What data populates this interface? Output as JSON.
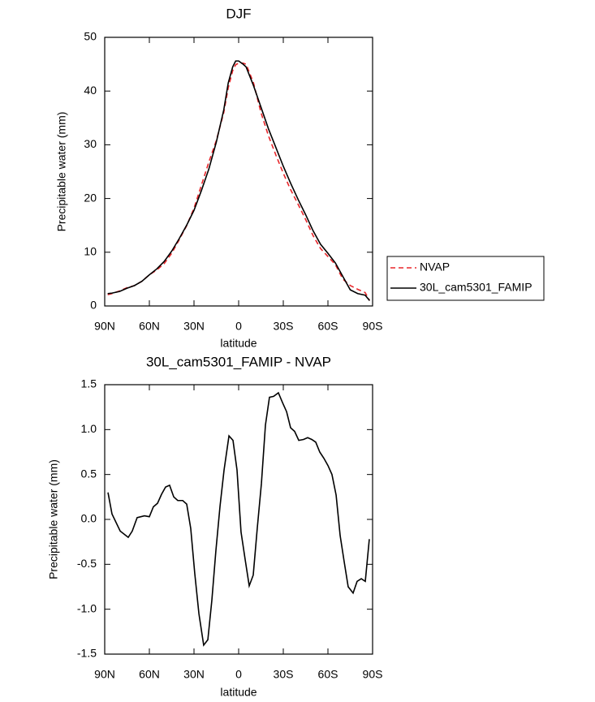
{
  "chart_data": [
    {
      "type": "line",
      "title": "DJF",
      "xlabel": "latitude",
      "ylabel": "Precipitable water (mm)",
      "x": [
        88,
        85,
        80,
        75,
        70,
        65,
        60,
        55,
        50,
        45,
        40,
        35,
        30,
        25,
        20,
        15,
        10,
        7,
        4,
        2,
        0,
        -3,
        -5,
        -10,
        -15,
        -20,
        -25,
        -30,
        -35,
        -40,
        -45,
        -50,
        -55,
        -60,
        -65,
        -70,
        -75,
        -80,
        -85,
        -88
      ],
      "series": [
        {
          "name": "NVAP",
          "color": "#e8262a",
          "style": "dashed",
          "values": [
            2.1,
            2.3,
            2.8,
            3.4,
            3.8,
            4.6,
            5.8,
            6.7,
            7.9,
            9.8,
            12.3,
            14.9,
            18.2,
            22.5,
            26.8,
            30.8,
            36,
            40.6,
            43.8,
            44.9,
            45.2,
            45.2,
            45,
            41.5,
            36,
            31.7,
            28.1,
            24.7,
            21.6,
            18.9,
            16.1,
            13.1,
            10.7,
            9.2,
            7.7,
            5.0,
            3.8,
            3.1,
            2.5,
            1.0
          ]
        },
        {
          "name": "30L_cam5301_FAMIP",
          "color": "#000000",
          "style": "solid",
          "values": [
            2.3,
            2.4,
            2.7,
            3.3,
            3.8,
            4.6,
            5.8,
            6.9,
            8.3,
            10.2,
            12.5,
            15.0,
            17.8,
            21.5,
            25.5,
            30.5,
            36.5,
            41.5,
            44.5,
            45.6,
            45.6,
            45,
            44.5,
            41,
            37,
            33,
            29.5,
            26,
            22.8,
            19.8,
            17,
            14,
            11.5,
            9.8,
            8,
            5.5,
            3,
            2.3,
            2,
            1
          ]
        }
      ],
      "xlim": [
        90,
        -90
      ],
      "xticks": [
        {
          "value": 90,
          "label": "90N"
        },
        {
          "value": 60,
          "label": "60N"
        },
        {
          "value": 30,
          "label": "30N"
        },
        {
          "value": 0,
          "label": "0"
        },
        {
          "value": -30,
          "label": "30S"
        },
        {
          "value": -60,
          "label": "60S"
        },
        {
          "value": -90,
          "label": "90S"
        }
      ],
      "ylim": [
        0,
        50
      ],
      "yticks": [
        0,
        10,
        20,
        30,
        40,
        50
      ],
      "legend": "right"
    },
    {
      "type": "line",
      "title": "30L_cam5301_FAMIP - NVAP",
      "xlabel": "latitude",
      "ylabel": "Precipitable water (mm)",
      "x": [
        87.8,
        85.1,
        79.6,
        74.2,
        71.5,
        68.2,
        63.3,
        60.0,
        57.3,
        54.5,
        51.8,
        49.1,
        46.4,
        43.6,
        40.9,
        37.6,
        34.9,
        32.2,
        29.5,
        26.7,
        23.5,
        20.7,
        18.0,
        15.3,
        12.5,
        9.8,
        6.5,
        3.8,
        1.1,
        -1.6,
        -4.4,
        -7.1,
        -9.8,
        -12.5,
        -15.3,
        -18.0,
        -20.7,
        -23.5,
        -26.7,
        -29.5,
        -32.2,
        -34.9,
        -37.6,
        -40.4,
        -43.6,
        -46.4,
        -49.1,
        -51.8,
        -54.5,
        -57.3,
        -60.0,
        -62.7,
        -65.5,
        -68.2,
        -70.9,
        -73.6,
        -76.9,
        -79.6,
        -82.4,
        -85.1,
        -87.8
      ],
      "values": [
        0.3,
        0.06,
        -0.13,
        -0.2,
        -0.13,
        0.02,
        0.04,
        0.03,
        0.14,
        0.18,
        0.28,
        0.36,
        0.38,
        0.25,
        0.21,
        0.21,
        0.17,
        -0.1,
        -0.6,
        -1.05,
        -1.4,
        -1.34,
        -0.9,
        -0.35,
        0.15,
        0.55,
        0.93,
        0.88,
        0.55,
        -0.14,
        -0.45,
        -0.74,
        -0.62,
        -0.1,
        0.4,
        1.05,
        1.36,
        1.37,
        1.41,
        1.3,
        1.2,
        1.02,
        0.98,
        0.88,
        0.89,
        0.91,
        0.89,
        0.86,
        0.75,
        0.68,
        0.6,
        0.5,
        0.27,
        -0.18,
        -0.47,
        -0.75,
        -0.82,
        -0.69,
        -0.66,
        -0.69,
        -0.22
      ],
      "color": "#000000",
      "xlim": [
        90,
        -90
      ],
      "xticks": [
        {
          "value": 90,
          "label": "90N"
        },
        {
          "value": 60,
          "label": "60N"
        },
        {
          "value": 30,
          "label": "30N"
        },
        {
          "value": 0,
          "label": "0"
        },
        {
          "value": -30,
          "label": "30S"
        },
        {
          "value": -60,
          "label": "60S"
        },
        {
          "value": -90,
          "label": "90S"
        }
      ],
      "ylim": [
        -1.5,
        1.5
      ],
      "yticks": [
        -1.5,
        {
          "value": -1,
          "label": "-1.0"
        },
        -0.5,
        {
          "value": 0,
          "label": "0.0"
        },
        0.5,
        {
          "value": 1,
          "label": "1.0"
        },
        1.5
      ]
    }
  ]
}
